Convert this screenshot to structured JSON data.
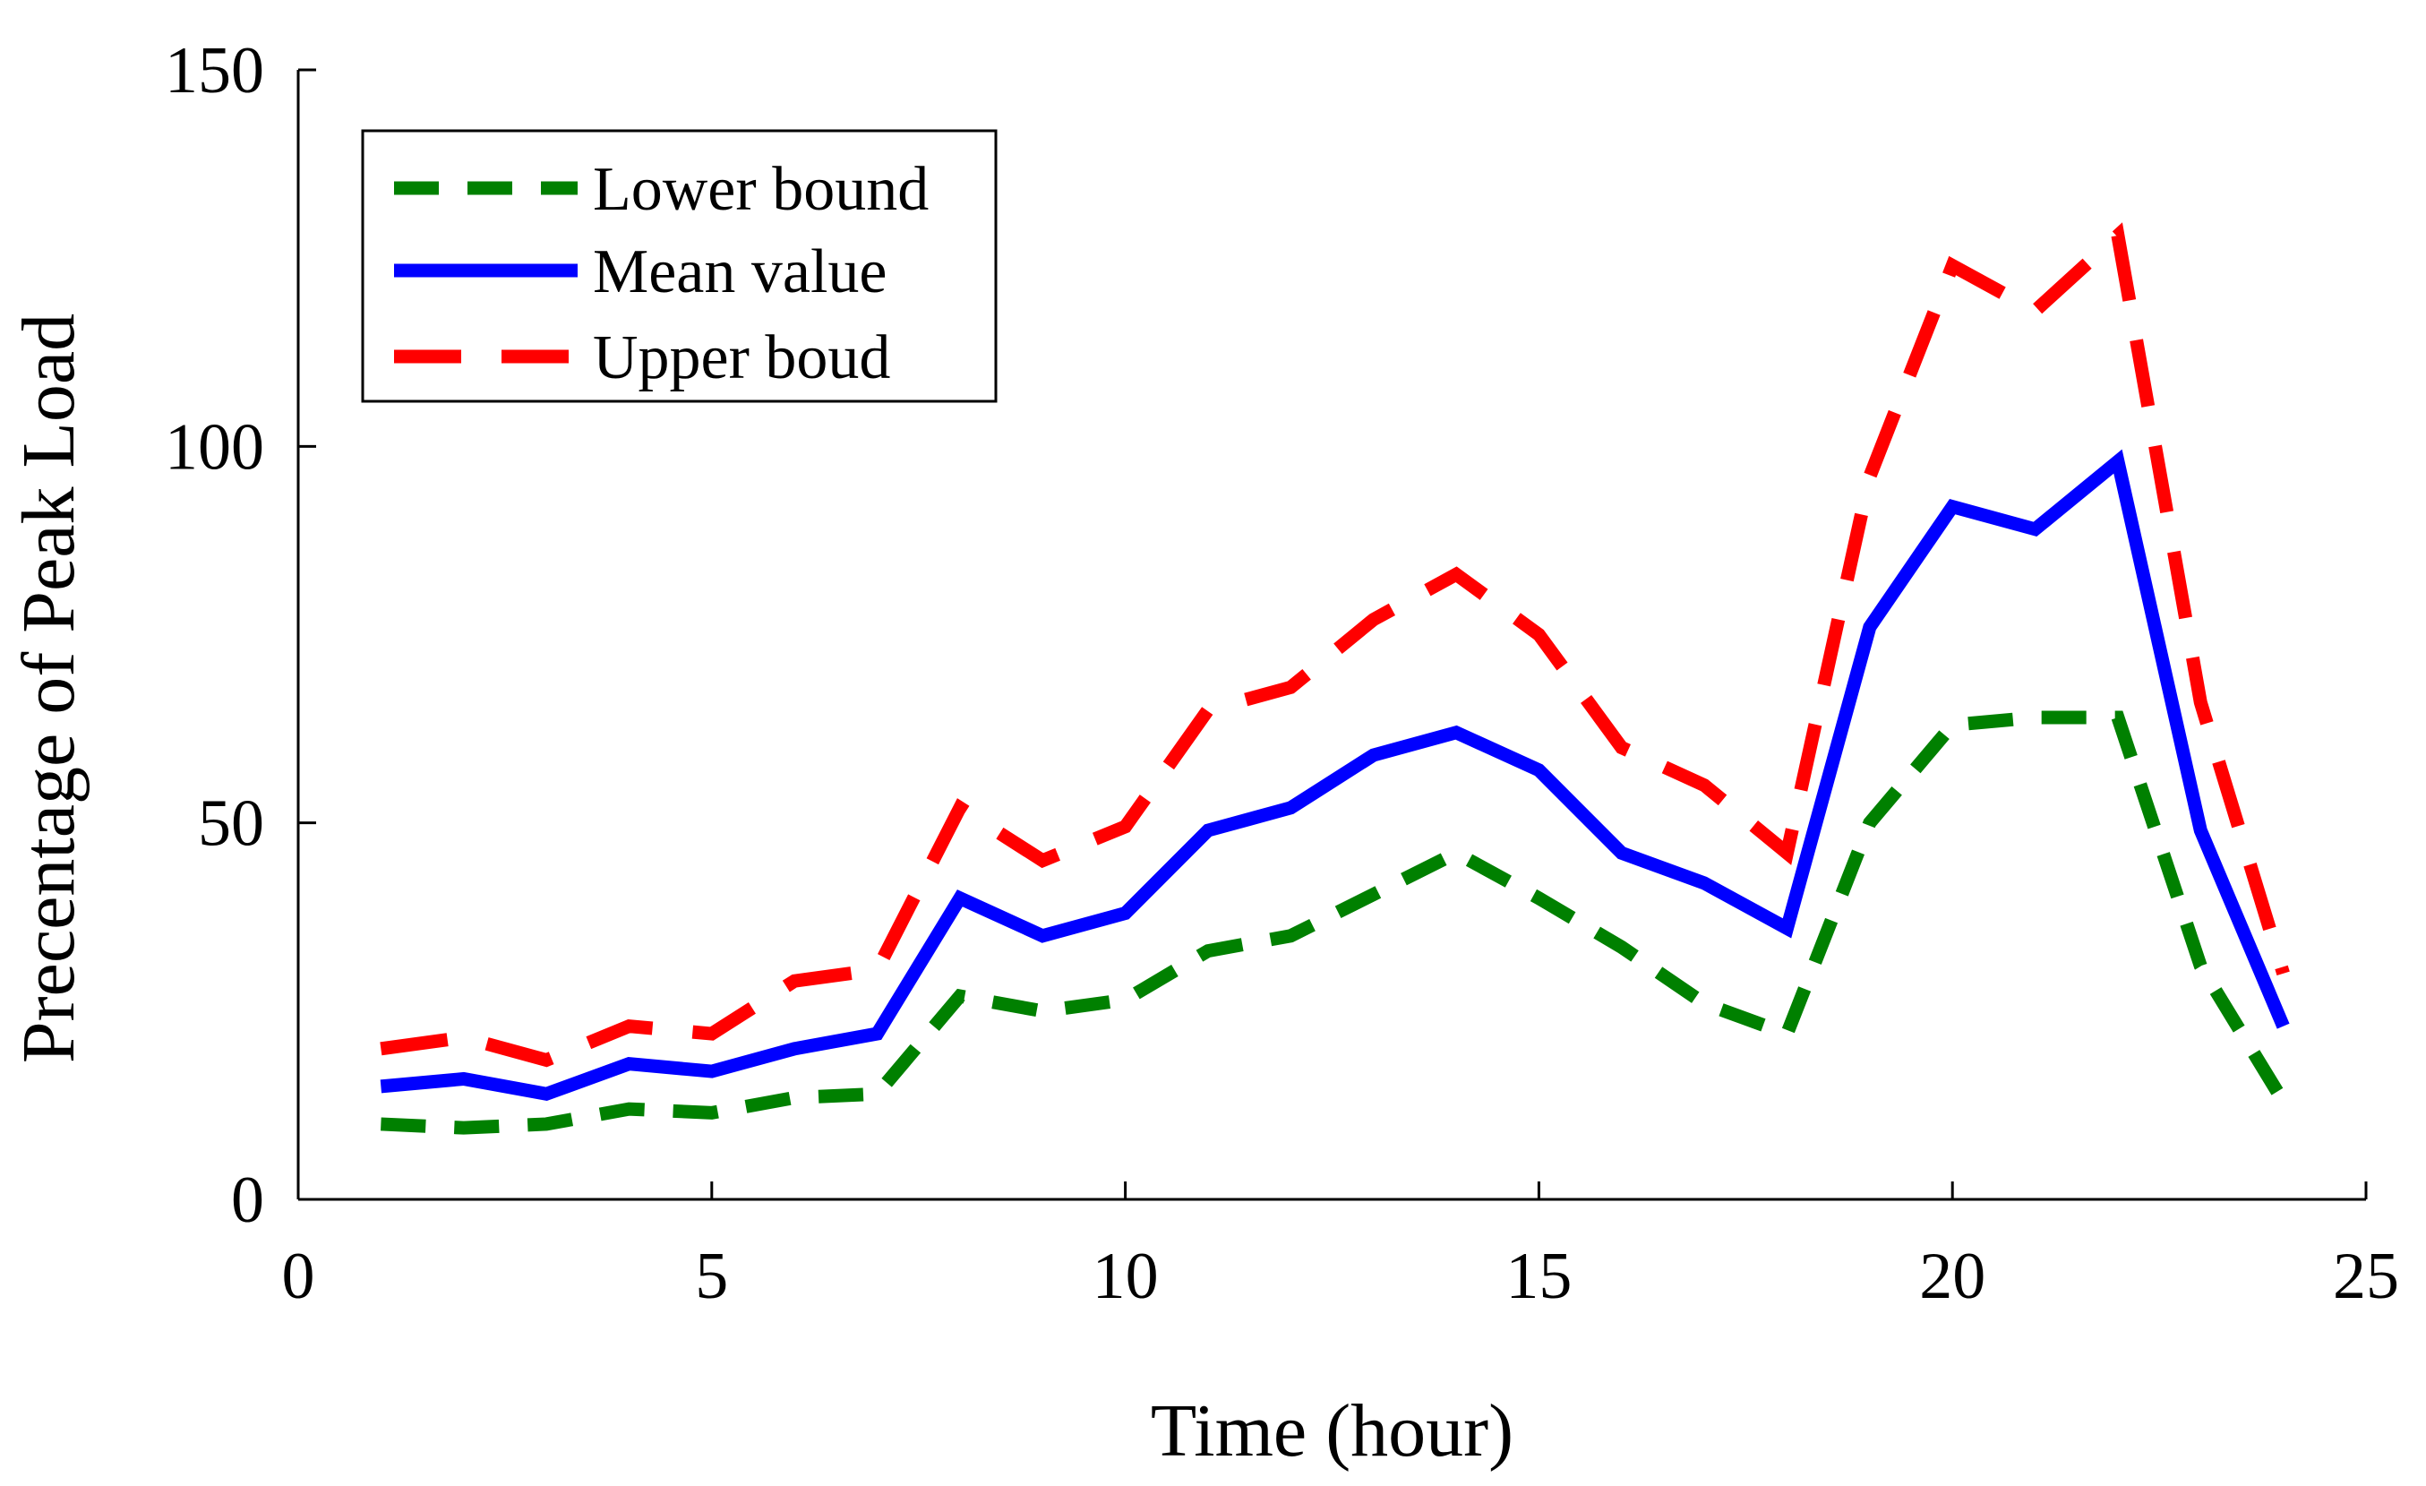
{
  "chart_data": {
    "type": "line",
    "title": "",
    "xlabel": "Time (hour)",
    "ylabel": "Precentage of Peak Load",
    "xlim": [
      0,
      25
    ],
    "ylim": [
      0,
      150
    ],
    "xticks": [
      0,
      5,
      10,
      15,
      20,
      25
    ],
    "yticks": [
      0,
      50,
      100,
      150
    ],
    "xtick_labels": [
      "0",
      "5",
      "10",
      "15",
      "20",
      "25"
    ],
    "ytick_labels": [
      "0",
      "50",
      "100",
      "150"
    ],
    "grid": false,
    "legend_position": "top-left",
    "x": [
      1,
      2,
      3,
      4,
      5,
      6,
      7,
      8,
      9,
      10,
      11,
      12,
      13,
      14,
      15,
      16,
      17,
      18,
      19,
      20,
      21,
      22,
      23,
      24
    ],
    "series": [
      {
        "name": "Lower bound",
        "color": "#008000",
        "style": "short-dash",
        "values": [
          10,
          9.5,
          10,
          12,
          11.5,
          13.5,
          14,
          27,
          25,
          26.5,
          33,
          35,
          40.5,
          46,
          40,
          33.5,
          26,
          22,
          50,
          63,
          64,
          64,
          31,
          13
        ]
      },
      {
        "name": "Mean value",
        "color": "#0000ff",
        "style": "solid",
        "values": [
          15,
          16,
          14,
          18,
          17,
          20,
          22,
          40,
          35,
          38,
          49,
          52,
          59,
          62,
          57,
          46,
          42,
          36,
          76,
          92,
          89,
          98,
          49,
          23
        ]
      },
      {
        "name": "Upper boud",
        "color": "#ff0000",
        "style": "long-dash",
        "values": [
          20,
          21.5,
          18.5,
          23,
          22,
          29,
          30.5,
          52,
          45,
          49.5,
          65,
          68,
          77,
          83,
          75,
          60,
          55,
          46,
          96,
          124,
          118,
          128,
          66,
          30
        ]
      }
    ]
  }
}
